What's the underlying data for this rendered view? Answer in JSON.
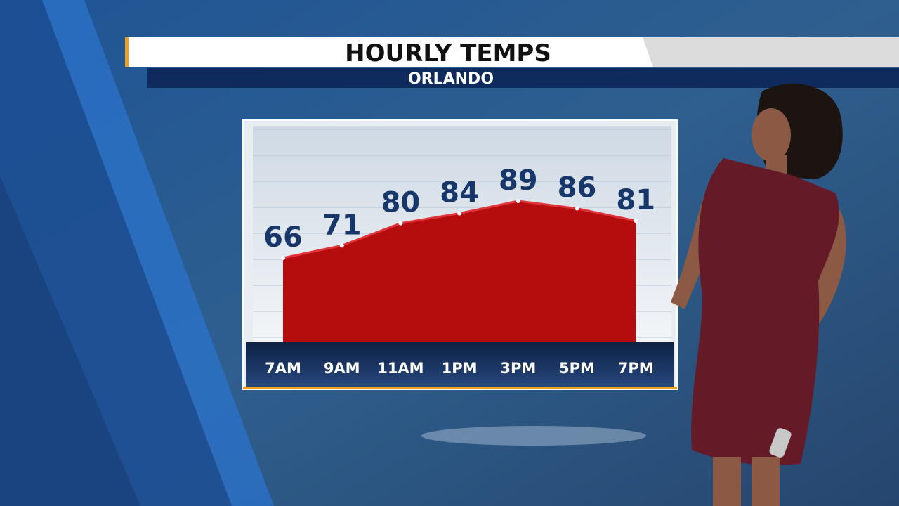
{
  "chart_data": {
    "type": "area",
    "title": "HOURLY TEMPS",
    "subtitle": "ORLANDO",
    "categories": [
      "7AM",
      "9AM",
      "11AM",
      "1PM",
      "3PM",
      "5PM",
      "7PM"
    ],
    "values": [
      66,
      71,
      80,
      84,
      89,
      86,
      81
    ],
    "color": "#b50d0d"
  }
}
